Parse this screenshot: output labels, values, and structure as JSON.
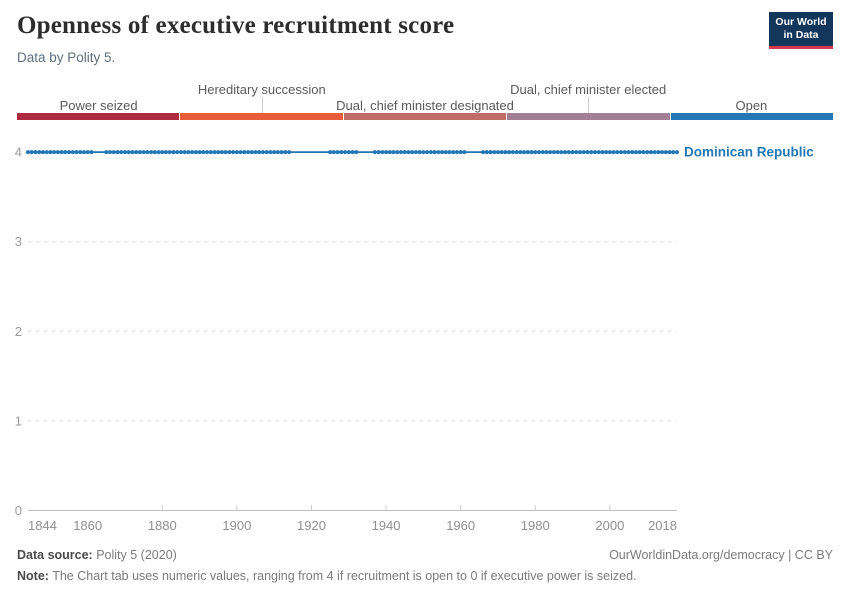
{
  "header": {
    "title": "Openness of executive recruitment score",
    "subtitle": "Data by Polity 5."
  },
  "logo": {
    "line1": "Our World",
    "line2": "in Data",
    "bg_color": "#12365c",
    "accent_color": "#d7374a"
  },
  "scale": {
    "segments": [
      {
        "label": "Power seized",
        "color": "#ad2a41",
        "row": "lower"
      },
      {
        "label": "Hereditary succession",
        "color": "#e85c3a",
        "row": "upper"
      },
      {
        "label": "Dual, chief minister designated",
        "color": "#bf6d66",
        "row": "lower"
      },
      {
        "label": "Dual, chief minister elected",
        "color": "#a37f95",
        "row": "upper"
      },
      {
        "label": "Open",
        "color": "#2277b4",
        "row": "lower"
      }
    ]
  },
  "chart_data": {
    "type": "line",
    "title": "Openness of executive recruitment score",
    "entity_label": "Dominican Republic",
    "series": [
      {
        "name": "Dominican Republic",
        "value": 4,
        "start_year": 1844,
        "end_year": 2018,
        "marker_runs": [
          [
            1844,
            1861
          ],
          [
            1865,
            1914
          ],
          [
            1925,
            1932
          ],
          [
            1937,
            1961
          ],
          [
            1966,
            2018
          ]
        ],
        "color": "#2277b4"
      }
    ],
    "x": {
      "label": "",
      "min": 1844,
      "max": 2018,
      "tick_labels": [
        "1844",
        "1860",
        "1880",
        "1900",
        "1920",
        "1940",
        "1960",
        "1980",
        "2000",
        "2018"
      ],
      "decade_ticks": [
        1880,
        1900,
        1920,
        1940,
        1960,
        1980,
        2000
      ]
    },
    "y": {
      "label": "",
      "min": 0,
      "max": 4,
      "ticks": [
        0,
        1,
        2,
        3,
        4
      ]
    },
    "grid": "dashed horizontal gridlines, solid baseline at 0",
    "legend_position": "right of line end"
  },
  "footer": {
    "source_label": "Data source:",
    "source_value": "Polity 5 (2020)",
    "credit": "OurWorldinData.org/democracy | CC BY",
    "note_label": "Note:",
    "note_text": "The Chart tab uses numeric values, ranging from 4 if recruitment is open to 0 if executive power is seized."
  }
}
